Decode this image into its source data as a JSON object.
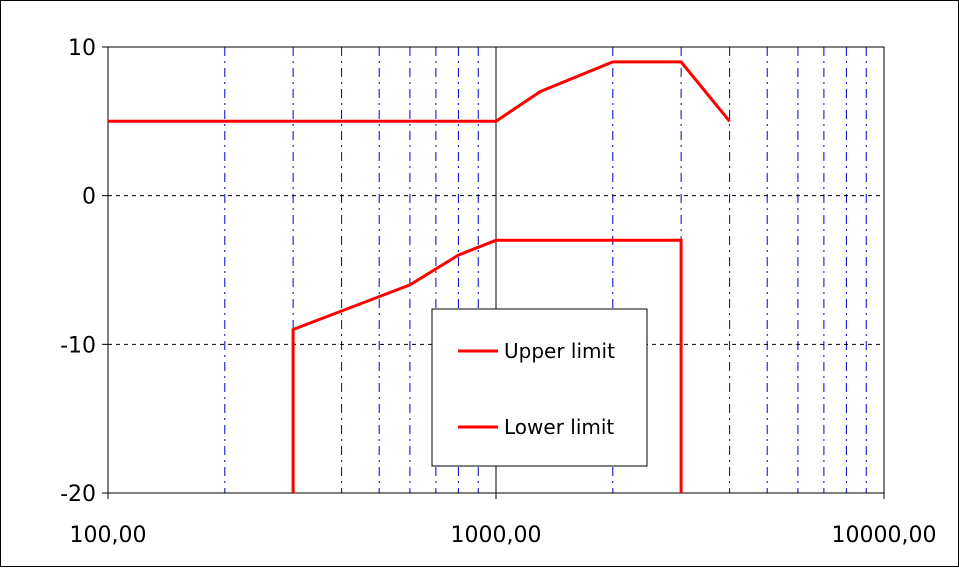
{
  "chart_data": {
    "type": "line",
    "title": "",
    "xlabel": "",
    "ylabel": "",
    "x_scale": "log",
    "xlim": [
      100,
      10000
    ],
    "ylim": [
      -20,
      10
    ],
    "x_ticks": [
      100,
      1000,
      10000
    ],
    "x_tick_labels": [
      "100,00",
      "1000,00",
      "10000,00"
    ],
    "y_ticks": [
      -20,
      -10,
      0,
      10
    ],
    "y_tick_labels": [
      "-20",
      "-10",
      "0",
      "10"
    ],
    "grid": true,
    "legend_position": "center",
    "colors": {
      "series": "#ff0000",
      "minor_grid": "#0000cc",
      "major_grid": "#000000"
    },
    "series": [
      {
        "name": "Upper limit",
        "points": [
          [
            100,
            5
          ],
          [
            1000,
            5
          ],
          [
            1300,
            7
          ],
          [
            2000,
            9
          ],
          [
            3000,
            9
          ],
          [
            4000,
            5
          ]
        ]
      },
      {
        "name": "Lower limit",
        "points": [
          [
            300,
            -20
          ],
          [
            300,
            -9
          ],
          [
            600,
            -6
          ],
          [
            800,
            -4
          ],
          [
            1000,
            -3
          ],
          [
            3000,
            -3
          ],
          [
            3000,
            -20
          ]
        ]
      }
    ]
  }
}
